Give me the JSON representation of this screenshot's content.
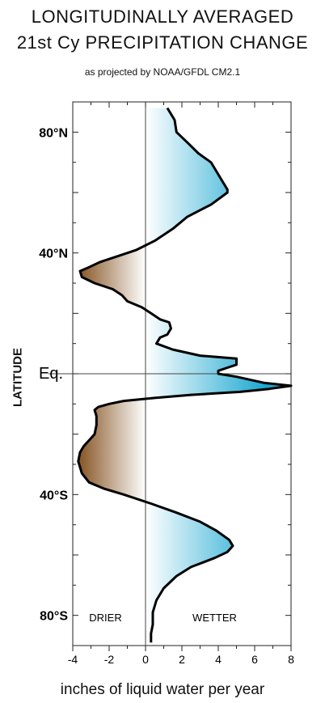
{
  "title_line1": "LONGITUDINALLY AVERAGED",
  "title_line2": "21st Cy PRECIPITATION CHANGE",
  "subtitle": "as projected by NOAA/GFDL CM2.1",
  "chart_data": {
    "type": "line",
    "title": "LONGITUDINALLY AVERAGED 21st Cy PRECIPITATION CHANGE",
    "subtitle": "as projected by NOAA/GFDL CM2.1",
    "xlabel": "inches of liquid water per year",
    "ylabel": "LATITUDE",
    "xlim": [
      -4,
      8
    ],
    "ylim": [
      -90,
      90
    ],
    "xticks": [
      "-4",
      "-2",
      "0",
      "2",
      "4",
      "6",
      "8"
    ],
    "ytick_labels": [
      {
        "lat": 80,
        "label": "80°N"
      },
      {
        "lat": 40,
        "label": "40°N"
      },
      {
        "lat": 0,
        "label": "Eq."
      },
      {
        "lat": -40,
        "label": "40°S"
      },
      {
        "lat": -80,
        "label": "80°S"
      }
    ],
    "annotations": {
      "left": "DRIER",
      "right": "WETTER"
    },
    "colors": {
      "wetter": "#1aa7d0",
      "drier": "#8a5a2b",
      "line": "#000000"
    },
    "series": [
      {
        "points": [
          [
            1.2,
            88
          ],
          [
            1.6,
            84
          ],
          [
            1.7,
            80
          ],
          [
            2.4,
            76
          ],
          [
            2.9,
            73
          ],
          [
            3.6,
            70
          ],
          [
            3.8,
            68
          ],
          [
            4.2,
            64
          ],
          [
            4.5,
            61
          ],
          [
            4.5,
            60
          ],
          [
            3.6,
            56
          ],
          [
            2.3,
            52
          ],
          [
            1.5,
            48
          ],
          [
            0.5,
            44
          ],
          [
            -0.5,
            41
          ],
          [
            -1.5,
            39
          ],
          [
            -2.5,
            37
          ],
          [
            -3.2,
            35
          ],
          [
            -3.6,
            34
          ],
          [
            -3.5,
            32
          ],
          [
            -2.8,
            30
          ],
          [
            -1.8,
            28
          ],
          [
            -1.3,
            26
          ],
          [
            -1.0,
            24
          ],
          [
            -0.2,
            22
          ],
          [
            0.3,
            20
          ],
          [
            0.8,
            18
          ],
          [
            1.3,
            17
          ],
          [
            1.4,
            15
          ],
          [
            1.2,
            13
          ],
          [
            0.8,
            12
          ],
          [
            0.6,
            10
          ],
          [
            1.5,
            8
          ],
          [
            3.0,
            6
          ],
          [
            5.0,
            5
          ],
          [
            5.0,
            3
          ],
          [
            4.5,
            2
          ],
          [
            4.0,
            1
          ],
          [
            4.0,
            0
          ],
          [
            5.0,
            -1
          ],
          [
            6.5,
            -3
          ],
          [
            8.0,
            -4
          ],
          [
            6.8,
            -5
          ],
          [
            5.2,
            -6
          ],
          [
            2.5,
            -7
          ],
          [
            0.5,
            -8
          ],
          [
            -1.2,
            -9
          ],
          [
            -2.0,
            -10
          ],
          [
            -2.6,
            -11
          ],
          [
            -2.8,
            -12
          ],
          [
            -2.7,
            -14
          ],
          [
            -2.7,
            -17
          ],
          [
            -2.8,
            -20
          ],
          [
            -3.1,
            -22
          ],
          [
            -3.4,
            -24
          ],
          [
            -3.6,
            -26
          ],
          [
            -3.7,
            -29
          ],
          [
            -3.5,
            -33
          ],
          [
            -3.1,
            -36
          ],
          [
            -2.3,
            -38
          ],
          [
            -1.2,
            -40
          ],
          [
            0.3,
            -43
          ],
          [
            1.7,
            -46
          ],
          [
            3.0,
            -49
          ],
          [
            3.9,
            -52
          ],
          [
            4.6,
            -55
          ],
          [
            4.8,
            -57
          ],
          [
            4.5,
            -59
          ],
          [
            3.8,
            -61
          ],
          [
            2.5,
            -64
          ],
          [
            1.7,
            -67
          ],
          [
            1.0,
            -71
          ],
          [
            0.6,
            -75
          ],
          [
            0.4,
            -79
          ],
          [
            0.4,
            -83
          ],
          [
            0.3,
            -86
          ],
          [
            0.3,
            -89
          ]
        ]
      }
    ]
  }
}
